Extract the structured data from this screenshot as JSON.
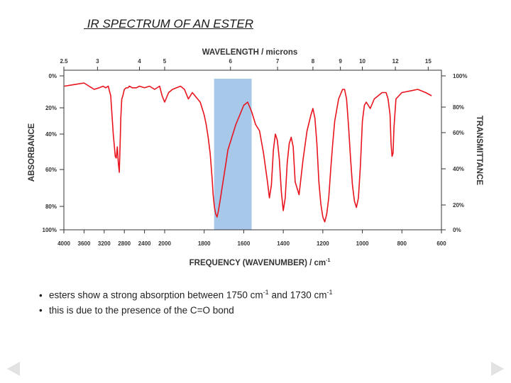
{
  "slide_title": " IR SPECTRUM OF AN ESTER",
  "bullets": [
    {
      "symbol": "•",
      "text_before": "esters show a strong absorption between 1750 cm",
      "sup1": "-1",
      "text_middle": " and 1730 cm",
      "sup2": "-1",
      "text_after": ""
    },
    {
      "symbol": "•",
      "text_before": "this is due to the presence of the C=O bond",
      "sup1": "",
      "text_middle": "",
      "sup2": "",
      "text_after": ""
    }
  ],
  "nav": {
    "prev_icon": "triangle-left-icon",
    "next_icon": "triangle-right-icon",
    "color": "#e2e2e2"
  },
  "chart_data": {
    "type": "line",
    "title": "",
    "xlabel": "FREQUENCY (WAVENUMBER) / cm",
    "xlabel_sup": "-1",
    "top_xlabel": "WAVELENGTH / microns",
    "left_ylabel": "ABSORBANCE",
    "right_ylabel": "TRANSMITTANCE",
    "x_ticks": [
      4000,
      3600,
      3200,
      2800,
      2400,
      2000,
      1800,
      1600,
      1400,
      1200,
      1000,
      800,
      600
    ],
    "top_ticks": [
      "2.5",
      "3",
      "4",
      "5",
      "6",
      "7",
      "8",
      "9",
      "10",
      "12",
      "15"
    ],
    "top_tick_wavenumbers": [
      4000,
      3333,
      2500,
      2000,
      1667,
      1429,
      1250,
      1111,
      1000,
      833,
      667
    ],
    "left_ticks": [
      "0%",
      "20%",
      "40%",
      "60%",
      "80%",
      "100%"
    ],
    "right_ticks": [
      "100%",
      "80%",
      "60%",
      "40%",
      "20%",
      "0%"
    ],
    "grid": false,
    "line_color": "#e8141e",
    "highlight": {
      "x_range": [
        1750,
        1560
      ],
      "color": "#a8c8ea"
    },
    "series": [
      {
        "x": [
          3990,
          3800,
          3600,
          3500,
          3400,
          3300,
          3220,
          3170,
          3120,
          3070,
          3020,
          2980,
          2960,
          2940,
          2920,
          2900,
          2880,
          2870,
          2850,
          2830,
          2800,
          2760,
          2730,
          2700,
          2640,
          2600,
          2560,
          2500,
          2400,
          2300,
          2200,
          2100,
          2050,
          2000,
          1980,
          1960,
          1940,
          1920,
          1900,
          1880,
          1860,
          1820,
          1800,
          1790,
          1780,
          1770,
          1760,
          1755,
          1748,
          1742,
          1735,
          1728,
          1720,
          1710,
          1700,
          1690,
          1680,
          1660,
          1640,
          1620,
          1600,
          1580,
          1560,
          1540,
          1520,
          1500,
          1480,
          1470,
          1460,
          1450,
          1440,
          1430,
          1420,
          1410,
          1400,
          1390,
          1380,
          1370,
          1360,
          1350,
          1340,
          1320,
          1300,
          1280,
          1260,
          1250,
          1240,
          1230,
          1220,
          1210,
          1200,
          1190,
          1180,
          1170,
          1160,
          1150,
          1140,
          1120,
          1100,
          1090,
          1080,
          1070,
          1060,
          1050,
          1040,
          1030,
          1020,
          1010,
          1000,
          990,
          980,
          960,
          940,
          920,
          900,
          880,
          870,
          860,
          855,
          850,
          845,
          840,
          830,
          800,
          760,
          720,
          680,
          650
        ],
        "y": [
          10,
          9,
          8,
          10,
          12,
          11,
          10,
          11,
          10,
          16,
          40,
          54,
          55,
          48,
          58,
          64,
          42,
          30,
          18,
          16,
          12,
          11,
          11,
          10,
          11,
          11,
          11,
          10,
          11,
          10,
          12,
          10,
          16,
          20,
          14,
          12,
          11,
          10,
          12,
          18,
          14,
          20,
          28,
          34,
          42,
          52,
          68,
          78,
          86,
          90,
          92,
          88,
          82,
          74,
          66,
          58,
          50,
          42,
          34,
          28,
          22,
          20,
          26,
          34,
          38,
          52,
          70,
          80,
          72,
          50,
          40,
          44,
          56,
          76,
          88,
          80,
          58,
          46,
          42,
          48,
          70,
          78,
          56,
          38,
          28,
          24,
          30,
          46,
          70,
          84,
          92,
          95,
          90,
          80,
          62,
          46,
          32,
          18,
          12,
          12,
          18,
          35,
          55,
          72,
          82,
          86,
          80,
          60,
          32,
          22,
          20,
          24,
          18,
          16,
          14,
          14,
          18,
          28,
          46,
          54,
          52,
          36,
          18,
          14,
          13,
          12,
          14,
          16
        ]
      }
    ],
    "absorbance_range": [
      0,
      100
    ]
  }
}
